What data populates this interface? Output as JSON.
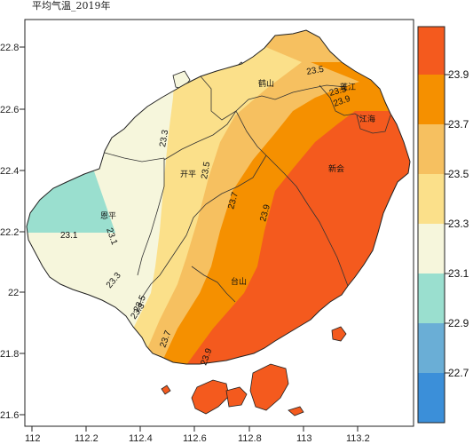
{
  "title": "平均气温_2019年",
  "colors": {
    "c22_7": "#3b8fd9",
    "c22_9": "#6aaed6",
    "c23_1": "#9adfcf",
    "c23_3": "#f6f6dc",
    "c23_5": "#fbe08a",
    "c23_7": "#f6c060",
    "c23_9": "#f59000",
    "c24_1": "#f45a1e",
    "land_outline": "#222222",
    "county_border": "#333333"
  },
  "axes": {
    "x_ticks": [
      "112",
      "112.2",
      "112.4",
      "112.6",
      "112.8",
      "113",
      "113.2"
    ],
    "y_ticks": [
      "22.8",
      "22.6",
      "22.4",
      "22.2",
      "22",
      "21.8",
      "21.6"
    ],
    "x_range_deg": [
      112.0,
      113.3
    ],
    "y_range_deg": [
      21.55,
      22.85
    ]
  },
  "place_names": [
    "鹤山",
    "蓬江",
    "江海",
    "新会",
    "开平",
    "恩平",
    "台山"
  ],
  "contour_labels": [
    "23.1",
    "23.1",
    "23.3",
    "23.3",
    "23.3",
    "23.5",
    "23.5",
    "23.5",
    "23.7",
    "23.7",
    "23.5",
    "23.9",
    "23.9",
    "23.9"
  ],
  "legend": {
    "labels": [
      "23.9",
      "23.7",
      "23.5",
      "23.3",
      "23.1",
      "22.9",
      "22.7"
    ]
  }
}
